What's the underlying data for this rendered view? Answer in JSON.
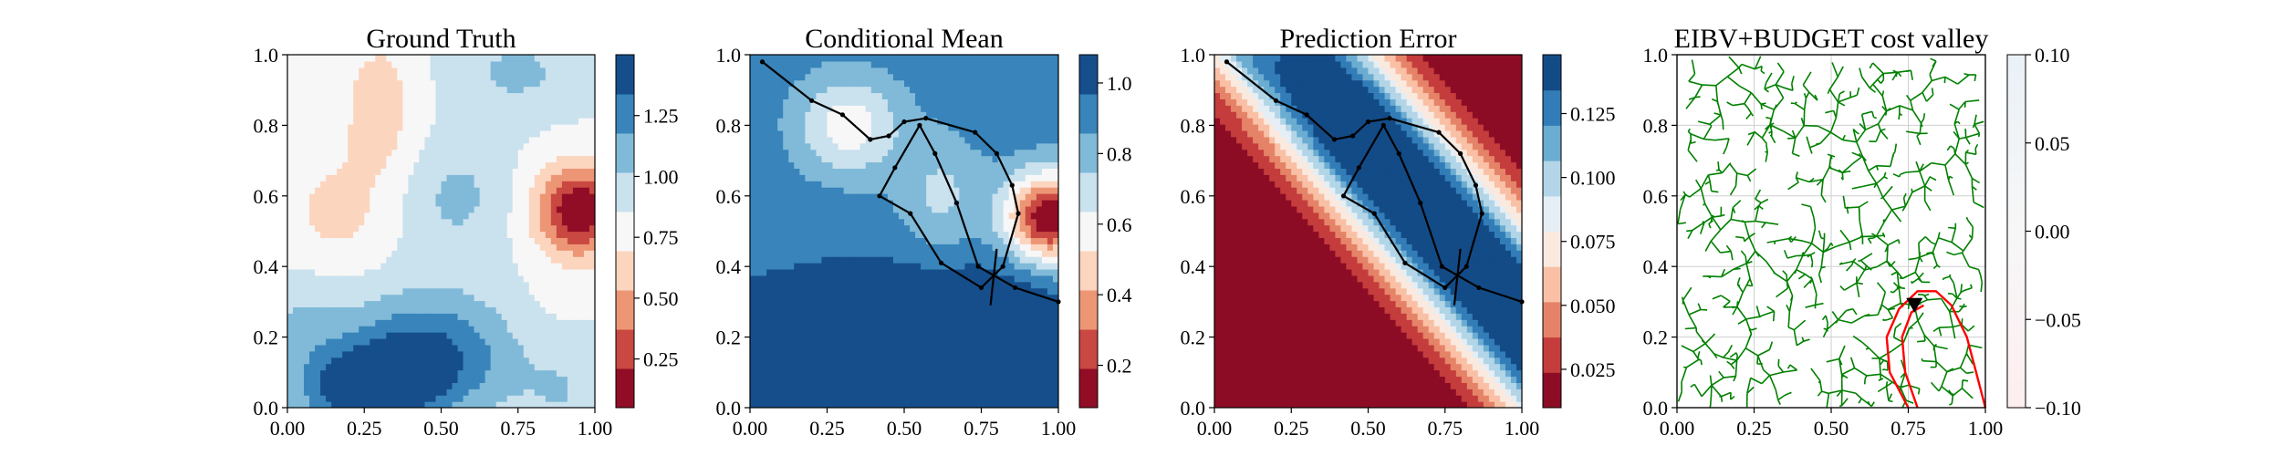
{
  "chart_data": [
    {
      "type": "heatmap",
      "title": "Ground Truth",
      "xlim": [
        0,
        1
      ],
      "ylim": [
        0,
        1
      ],
      "x_ticks": [
        "0.00",
        "0.25",
        "0.50",
        "0.75",
        "1.00"
      ],
      "y_ticks": [
        "0.0",
        "0.2",
        "0.4",
        "0.6",
        "0.8",
        "1.0"
      ],
      "colorbar": {
        "colormap": "RdBu",
        "levels": 9,
        "range": [
          0.05,
          1.5
        ],
        "ticks": [
          "0.25",
          "0.50",
          "0.75",
          "1.00",
          "1.25"
        ]
      },
      "field": {
        "base": 0.85,
        "bumps": [
          {
            "x": 0.95,
            "y": 0.56,
            "amp": -0.8,
            "sx": 0.1,
            "sy": 0.09
          },
          {
            "x": 0.3,
            "y": 0.85,
            "amp": -0.25,
            "sx": 0.09,
            "sy": 0.15
          },
          {
            "x": 0.15,
            "y": 0.55,
            "amp": -0.2,
            "sx": 0.12,
            "sy": 0.12
          },
          {
            "x": 0.45,
            "y": 0.15,
            "amp": 0.55,
            "sx": 0.2,
            "sy": 0.12
          },
          {
            "x": 0.25,
            "y": 0.05,
            "amp": 0.6,
            "sx": 0.15,
            "sy": 0.08
          },
          {
            "x": 0.55,
            "y": 0.6,
            "amp": 0.2,
            "sx": 0.12,
            "sy": 0.12
          },
          {
            "x": 0.75,
            "y": 0.95,
            "amp": 0.2,
            "sx": 0.15,
            "sy": 0.08
          },
          {
            "x": 0.9,
            "y": 0.05,
            "amp": 0.15,
            "sx": 0.1,
            "sy": 0.1
          },
          {
            "x": 0.05,
            "y": 0.25,
            "amp": 0.15,
            "sx": 0.1,
            "sy": 0.1
          },
          {
            "x": 0.85,
            "y": 0.25,
            "amp": -0.05,
            "sx": 0.1,
            "sy": 0.1
          }
        ]
      }
    },
    {
      "type": "heatmap",
      "title": "Conditional Mean",
      "xlim": [
        0,
        1
      ],
      "ylim": [
        0,
        1
      ],
      "x_ticks": [
        "0.00",
        "0.25",
        "0.50",
        "0.75",
        "1.00"
      ],
      "y_ticks": [
        "0.0",
        "0.2",
        "0.4",
        "0.6",
        "0.8",
        "1.0"
      ],
      "colorbar": {
        "colormap": "RdBu",
        "levels": 9,
        "range": [
          0.08,
          1.08
        ],
        "ticks": [
          "0.2",
          "0.4",
          "0.6",
          "0.8",
          "1.0"
        ]
      },
      "field": {
        "base": 0.92,
        "bumps": [
          {
            "x": 0.97,
            "y": 0.54,
            "amp": -0.85,
            "sx": 0.1,
            "sy": 0.09
          },
          {
            "x": 0.32,
            "y": 0.8,
            "amp": -0.35,
            "sx": 0.12,
            "sy": 0.1
          },
          {
            "x": 0.62,
            "y": 0.6,
            "amp": -0.2,
            "sx": 0.1,
            "sy": 0.12
          },
          {
            "x": 0.2,
            "y": 0.15,
            "amp": 0.3,
            "sx": 0.3,
            "sy": 0.12
          },
          {
            "x": 0.55,
            "y": 0.05,
            "amp": 0.3,
            "sx": 0.25,
            "sy": 0.2
          },
          {
            "x": 0.85,
            "y": 0.05,
            "amp": 0.25,
            "sx": 0.15,
            "sy": 0.2
          }
        ]
      },
      "path": [
        [
          0.04,
          0.98
        ],
        [
          0.2,
          0.87
        ],
        [
          0.3,
          0.83
        ],
        [
          0.39,
          0.76
        ],
        [
          0.45,
          0.77
        ],
        [
          0.5,
          0.81
        ],
        [
          0.57,
          0.82
        ],
        [
          0.73,
          0.78
        ],
        [
          0.8,
          0.72
        ],
        [
          0.85,
          0.63
        ],
        [
          0.87,
          0.55
        ],
        [
          0.82,
          0.4
        ],
        [
          0.75,
          0.34
        ],
        [
          0.62,
          0.41
        ],
        [
          0.52,
          0.55
        ],
        [
          0.42,
          0.6
        ],
        [
          0.47,
          0.68
        ],
        [
          0.55,
          0.8
        ],
        [
          0.6,
          0.72
        ],
        [
          0.67,
          0.58
        ],
        [
          0.74,
          0.4
        ],
        [
          0.86,
          0.34
        ],
        [
          1.0,
          0.3
        ]
      ],
      "path_extra": [
        [
          0.8,
          0.45
        ],
        [
          0.78,
          0.29
        ]
      ]
    },
    {
      "type": "heatmap",
      "title": "Prediction Error",
      "xlim": [
        0,
        1
      ],
      "ylim": [
        0,
        1
      ],
      "x_ticks": [
        "0.00",
        "0.25",
        "0.50",
        "0.75",
        "1.00"
      ],
      "y_ticks": [
        "0.0",
        "0.2",
        "0.4",
        "0.6",
        "0.8",
        "1.0"
      ],
      "colorbar": {
        "colormap": "RdBu",
        "levels": 10,
        "range": [
          0.01,
          0.148
        ],
        "ticks": [
          "0.025",
          "0.050",
          "0.075",
          "0.100",
          "0.125"
        ]
      },
      "field": {
        "base": 0.148,
        "band_decay": 0.32,
        "band_width": 0.17,
        "band_floor": 0.0,
        "core_drop": 0.01
      },
      "path": [
        [
          0.04,
          0.98
        ],
        [
          0.2,
          0.87
        ],
        [
          0.3,
          0.83
        ],
        [
          0.39,
          0.76
        ],
        [
          0.45,
          0.77
        ],
        [
          0.5,
          0.81
        ],
        [
          0.57,
          0.82
        ],
        [
          0.73,
          0.78
        ],
        [
          0.8,
          0.72
        ],
        [
          0.85,
          0.63
        ],
        [
          0.87,
          0.55
        ],
        [
          0.82,
          0.4
        ],
        [
          0.75,
          0.34
        ],
        [
          0.62,
          0.41
        ],
        [
          0.52,
          0.55
        ],
        [
          0.42,
          0.6
        ],
        [
          0.47,
          0.68
        ],
        [
          0.55,
          0.8
        ],
        [
          0.6,
          0.72
        ],
        [
          0.67,
          0.58
        ],
        [
          0.74,
          0.4
        ],
        [
          0.86,
          0.34
        ],
        [
          1.0,
          0.3
        ]
      ],
      "path_extra": [
        [
          0.8,
          0.45
        ],
        [
          0.78,
          0.29
        ]
      ]
    },
    {
      "type": "scatter",
      "title": "EIBV+BUDGET cost valley",
      "xlim": [
        0,
        1
      ],
      "ylim": [
        0,
        1
      ],
      "x_ticks": [
        "0.00",
        "0.25",
        "0.50",
        "0.75",
        "1.00"
      ],
      "y_ticks": [
        "0.0",
        "0.2",
        "0.4",
        "0.6",
        "0.8",
        "1.0"
      ],
      "grid": true,
      "colorbar": {
        "colormap": "RdBu",
        "range": [
          -0.1,
          0.1
        ],
        "ticks": [
          "−0.10",
          "−0.05",
          "0.00",
          "0.05",
          "0.10"
        ]
      },
      "tree_color": "#008000",
      "boundary_color": "#ff0000",
      "marker": {
        "x": 0.77,
        "y": 0.29,
        "symbol": "down-triangle"
      },
      "budget_boundary": [
        [
          0.75,
          0.0
        ],
        [
          0.69,
          0.1
        ],
        [
          0.68,
          0.2
        ],
        [
          0.72,
          0.28
        ],
        [
          0.78,
          0.33
        ],
        [
          0.84,
          0.33
        ],
        [
          0.89,
          0.29
        ],
        [
          0.94,
          0.2
        ],
        [
          0.97,
          0.1
        ],
        [
          1.0,
          0.0
        ]
      ],
      "budget_inner": [
        [
          0.78,
          0.0
        ],
        [
          0.74,
          0.1
        ],
        [
          0.73,
          0.2
        ],
        [
          0.76,
          0.27
        ],
        [
          0.8,
          0.29
        ]
      ]
    }
  ]
}
